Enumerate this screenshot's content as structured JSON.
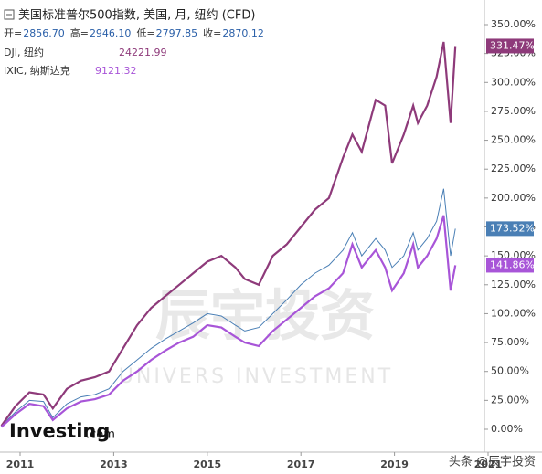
{
  "chart_data": {
    "type": "line",
    "title": "美国标准普尔500指数, 美国, 月, 纽约 (CFD)",
    "ohlc": [
      {
        "label": "开=",
        "value": "2856.70"
      },
      {
        "label": "高=",
        "value": "2946.10"
      },
      {
        "label": "低=",
        "value": "2797.85"
      },
      {
        "label": "收=",
        "value": "2870.12"
      }
    ],
    "x": [
      2010.6,
      2010.9,
      2011.2,
      2011.5,
      2011.7,
      2012.0,
      2012.3,
      2012.6,
      2012.9,
      2013.2,
      2013.5,
      2013.8,
      2014.1,
      2014.4,
      2014.7,
      2015.0,
      2015.3,
      2015.6,
      2015.8,
      2016.1,
      2016.4,
      2016.7,
      2017.0,
      2017.3,
      2017.6,
      2017.9,
      2018.1,
      2018.3,
      2018.6,
      2018.8,
      2018.95,
      2019.2,
      2019.4,
      2019.5,
      2019.7,
      2019.9,
      2020.05,
      2020.2,
      2020.3
    ],
    "series": [
      {
        "name": "美国标准普尔500指数, 美国, 月, 纽约 (CFD)",
        "color": "#4a7fb5",
        "last_label": "173.52%",
        "values": [
          3,
          15,
          25,
          24,
          10,
          22,
          28,
          30,
          35,
          50,
          60,
          70,
          78,
          85,
          92,
          100,
          98,
          90,
          85,
          88,
          100,
          112,
          125,
          135,
          142,
          155,
          170,
          150,
          165,
          155,
          140,
          150,
          170,
          155,
          165,
          180,
          208,
          150,
          173.52
        ]
      },
      {
        "name": "DJI, 纽约",
        "legend_value": "24221.99",
        "color": "#8e3a7a",
        "last_label": "331.47%",
        "values": [
          3,
          20,
          32,
          30,
          18,
          35,
          42,
          45,
          50,
          70,
          90,
          105,
          115,
          125,
          135,
          145,
          150,
          140,
          130,
          125,
          150,
          160,
          175,
          190,
          200,
          235,
          255,
          240,
          285,
          280,
          230,
          255,
          280,
          265,
          280,
          305,
          335,
          265,
          331.47
        ]
      },
      {
        "name": "IXIC, 纳斯达克",
        "legend_value": "9121.32",
        "color": "#a855d8",
        "last_label": "141.86%",
        "values": [
          2,
          13,
          22,
          20,
          8,
          18,
          24,
          26,
          30,
          42,
          50,
          60,
          68,
          75,
          80,
          90,
          88,
          80,
          75,
          72,
          85,
          95,
          105,
          115,
          122,
          135,
          160,
          140,
          155,
          140,
          120,
          135,
          160,
          140,
          150,
          165,
          185,
          120,
          141.86
        ]
      }
    ],
    "xlim": [
      2010.57,
      2021.0
    ],
    "xticks": [
      2011,
      2013,
      2015,
      2017,
      2019,
      2021
    ],
    "ylim": [
      -10,
      350
    ],
    "yticks": [
      {
        "value": 0,
        "label": "0.00%"
      },
      {
        "value": 25,
        "label": "25.00%"
      },
      {
        "value": 50,
        "label": "50.00%"
      },
      {
        "value": 75,
        "label": "75.00%"
      },
      {
        "value": 100,
        "label": "100.00%"
      },
      {
        "value": 125,
        "label": "125.00%"
      },
      {
        "value": 150,
        "label": "150.00%"
      },
      {
        "value": 175,
        "label": "175.00%"
      },
      {
        "value": 200,
        "label": "200.00%"
      },
      {
        "value": 225,
        "label": "225.00%"
      },
      {
        "value": 250,
        "label": "250.00%"
      },
      {
        "value": 275,
        "label": "275.00%"
      },
      {
        "value": 300,
        "label": "300.00%"
      },
      {
        "value": 325,
        "label": "325.00%"
      },
      {
        "value": 350,
        "label": "350.00%"
      }
    ],
    "watermark": [
      "辰宇投资",
      "UNIVERS INVESTMENT"
    ],
    "logo": "Investing",
    "logo_suffix": ".com",
    "credit": "头条 @辰宇投资"
  }
}
